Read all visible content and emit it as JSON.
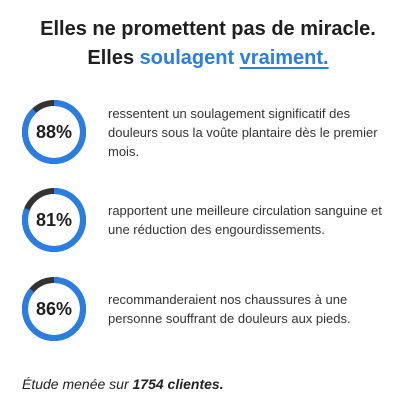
{
  "header": {
    "line1": "Elles ne promettent pas de miracle.",
    "line2_prefix": "Elles",
    "highlight": "soulagent",
    "highlight_underlined": "vraiment."
  },
  "ring_colors": {
    "fill": "#2a7de1",
    "track": "#333333"
  },
  "stats": [
    {
      "value": 88,
      "label": "88%",
      "text": "ressentent un soulagement significatif des douleurs sous la voûte plantaire dès le premier mois."
    },
    {
      "value": 81,
      "label": "81%",
      "text": "rapportent une meilleure circulation sanguine et une réduction des engourdissements."
    },
    {
      "value": 86,
      "label": "86%",
      "text": "recommanderaient nos chaussures à une personne souffrant de douleurs aux pieds."
    }
  ],
  "footer": {
    "text": "Étude menée sur",
    "emphasis": "1754 clientes."
  }
}
